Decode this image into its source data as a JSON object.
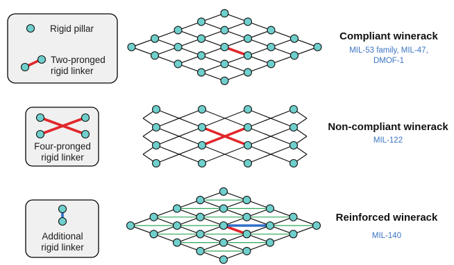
{
  "colors": {
    "pillar": "#6fcfcc",
    "two_pronged_linker": "#e1262b",
    "additional_linker": "#2f6fc8",
    "reinforcing_bond": "#2da65a",
    "subtitle": "#3a74c1"
  },
  "legend": {
    "pillar_label": "Rigid pillar",
    "two_pronged_label_line1": "Two-pronged",
    "two_pronged_label_line2": "rigid linker",
    "four_pronged_label_line1": "Four-pronged",
    "four_pronged_label_line2": "rigid linker",
    "additional_label_line1": "Additional",
    "additional_label_line2": "rigid linker"
  },
  "rows": [
    {
      "title": "Compliant winerack",
      "subtitle_line1": "MIL-53 family, MIL-47,",
      "subtitle_line2": "DMOF-1"
    },
    {
      "title": "Non-compliant winerack",
      "subtitle_line1": "MIL-122"
    },
    {
      "title": "Reinforced winerack",
      "subtitle_line1": "MIL-140"
    }
  ]
}
